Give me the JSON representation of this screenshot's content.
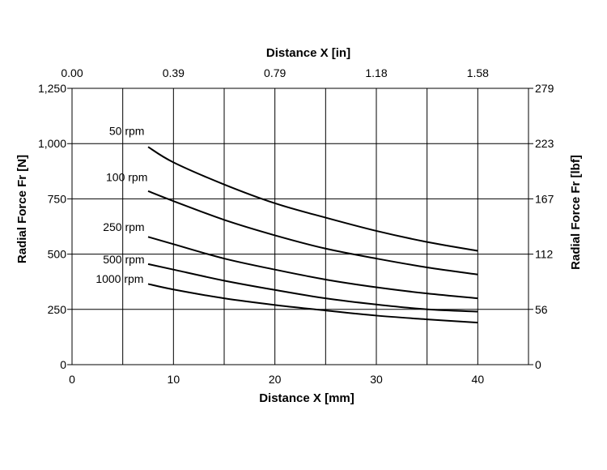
{
  "chart_data": {
    "type": "line",
    "xlabel": "Distance X [mm]",
    "x2label": "Distance X [in]",
    "ylabel": "Radial Force Fr [N]",
    "y2label": "Radial Force Fr [lbf]",
    "xlim": [
      0,
      45
    ],
    "ylim": [
      0,
      1250
    ],
    "grid": true,
    "x_ticks": [
      "0",
      "10",
      "20",
      "30",
      "40"
    ],
    "x_tick_values": [
      0,
      10,
      20,
      30,
      40
    ],
    "x2_ticks": [
      "0.00",
      "0.39",
      "0.79",
      "1.18",
      "1.58"
    ],
    "x2_tick_values": [
      0,
      10,
      20,
      30,
      40
    ],
    "y_ticks": [
      "0",
      "250",
      "500",
      "750",
      "1,000",
      "1,250"
    ],
    "y_tick_values": [
      0,
      250,
      500,
      750,
      1000,
      1250
    ],
    "y2_ticks": [
      "0",
      "56",
      "112",
      "167",
      "223",
      "279"
    ],
    "x_gridlines": [
      0,
      5,
      10,
      15,
      20,
      25,
      30,
      35,
      40,
      45
    ],
    "y_gridlines": [
      0,
      250,
      500,
      750,
      1000,
      1250
    ],
    "series": [
      {
        "name": "50 rpm",
        "label_at": [
          5.4,
          1040
        ],
        "points": [
          [
            7.5,
            985
          ],
          [
            10,
            915
          ],
          [
            15,
            815
          ],
          [
            20,
            730
          ],
          [
            25,
            665
          ],
          [
            30,
            605
          ],
          [
            35,
            555
          ],
          [
            40,
            515
          ]
        ]
      },
      {
        "name": "100 rpm",
        "label_at": [
          5.4,
          830
        ],
        "points": [
          [
            7.5,
            785
          ],
          [
            10,
            740
          ],
          [
            15,
            655
          ],
          [
            20,
            585
          ],
          [
            25,
            525
          ],
          [
            30,
            480
          ],
          [
            35,
            440
          ],
          [
            40,
            408
          ]
        ]
      },
      {
        "name": "250 rpm",
        "label_at": [
          5.1,
          605
        ],
        "points": [
          [
            7.5,
            578
          ],
          [
            10,
            545
          ],
          [
            15,
            480
          ],
          [
            20,
            430
          ],
          [
            25,
            385
          ],
          [
            30,
            350
          ],
          [
            35,
            322
          ],
          [
            40,
            300
          ]
        ]
      },
      {
        "name": "500 rpm",
        "label_at": [
          5.1,
          458
        ],
        "points": [
          [
            7.5,
            455
          ],
          [
            10,
            430
          ],
          [
            15,
            380
          ],
          [
            20,
            338
          ],
          [
            25,
            300
          ],
          [
            30,
            272
          ],
          [
            35,
            250
          ],
          [
            40,
            240
          ]
        ]
      },
      {
        "name": "1000 rpm",
        "label_at": [
          4.7,
          370
        ],
        "points": [
          [
            7.5,
            365
          ],
          [
            10,
            340
          ],
          [
            15,
            300
          ],
          [
            20,
            270
          ],
          [
            25,
            245
          ],
          [
            30,
            222
          ],
          [
            35,
            205
          ],
          [
            40,
            190
          ]
        ]
      }
    ]
  }
}
